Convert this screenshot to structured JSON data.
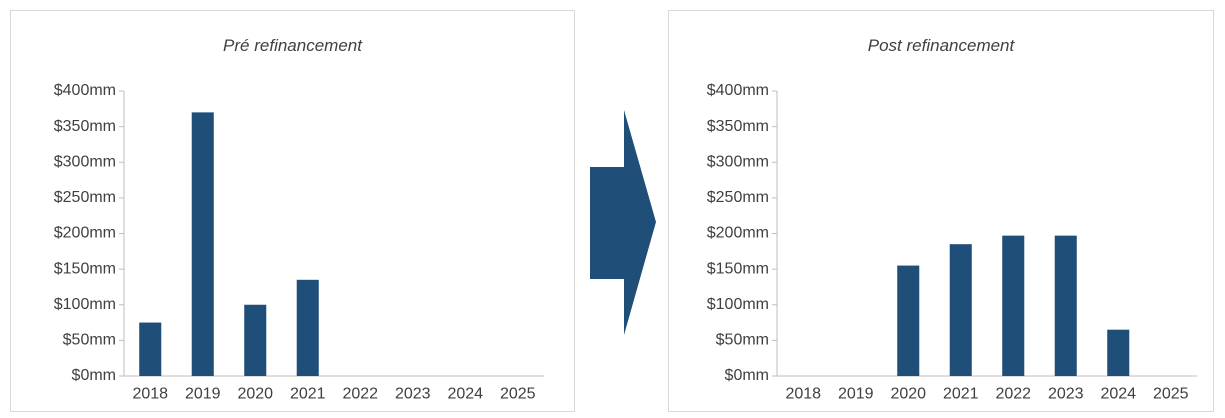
{
  "colors": {
    "bar": "#1f4e79",
    "arrow": "#1f4e79",
    "axis": "#bfbfbf",
    "text": "#404040"
  },
  "arrow_icon": "right-arrow-icon",
  "chart_data": [
    {
      "type": "bar",
      "title": "Pré refinancement",
      "categories": [
        "2018",
        "2019",
        "2020",
        "2021",
        "2022",
        "2023",
        "2024",
        "2025"
      ],
      "values": [
        75,
        370,
        100,
        135,
        0,
        0,
        0,
        0
      ],
      "ylim": [
        0,
        400
      ],
      "yticks": [
        0,
        50,
        100,
        150,
        200,
        250,
        300,
        350,
        400
      ],
      "ytick_labels": [
        "$0mm",
        "$50mm",
        "$100mm",
        "$150mm",
        "$200mm",
        "$250mm",
        "$300mm",
        "$350mm",
        "$400mm"
      ],
      "xlabel": "",
      "ylabel": "",
      "grid": false
    },
    {
      "type": "bar",
      "title": "Post refinancement",
      "categories": [
        "2018",
        "2019",
        "2020",
        "2021",
        "2022",
        "2023",
        "2024",
        "2025"
      ],
      "values": [
        0,
        0,
        155,
        185,
        197,
        197,
        65,
        0
      ],
      "ylim": [
        0,
        400
      ],
      "yticks": [
        0,
        50,
        100,
        150,
        200,
        250,
        300,
        350,
        400
      ],
      "ytick_labels": [
        "$0mm",
        "$50mm",
        "$100mm",
        "$150mm",
        "$200mm",
        "$250mm",
        "$300mm",
        "$350mm",
        "$400mm"
      ],
      "xlabel": "",
      "ylabel": "",
      "grid": false
    }
  ]
}
